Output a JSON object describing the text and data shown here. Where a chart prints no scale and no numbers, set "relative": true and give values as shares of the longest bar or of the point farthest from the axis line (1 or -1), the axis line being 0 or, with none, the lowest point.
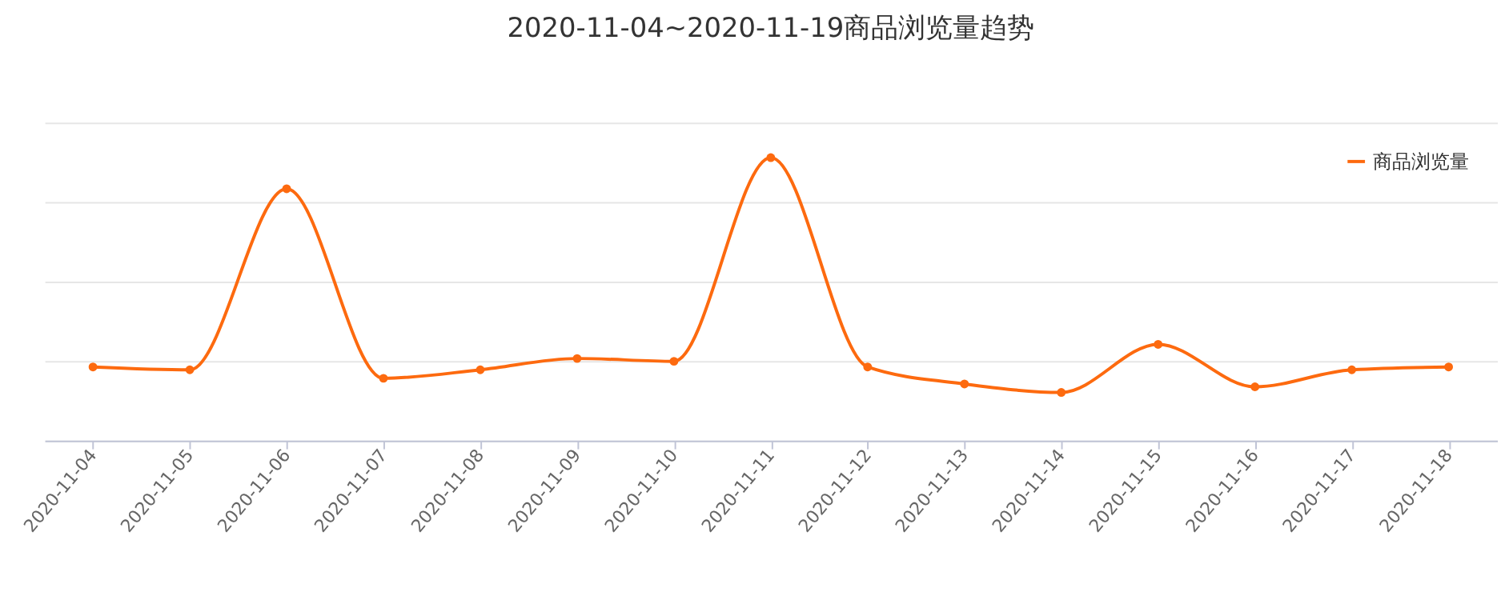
{
  "chart_data": {
    "type": "line",
    "title": "2020-11-04~2020-11-19商品浏览量趋势",
    "relative": true,
    "grid": "y",
    "legend": "top right",
    "marker": "circle",
    "line_style": "solid",
    "categories": [
      "2020-11-04",
      "2020-11-05",
      "2020-11-06",
      "2020-11-07",
      "2020-11-08",
      "2020-11-09",
      "2020-11-10",
      "2020-11-11",
      "2020-11-12",
      "2020-11-13",
      "2020-11-14",
      "2020-11-15",
      "2020-11-16",
      "2020-11-17",
      "2020-11-18"
    ],
    "series": [
      {
        "name": "商品浏览量",
        "color": "#fd6a0f",
        "values": [
          0.26,
          0.25,
          0.89,
          0.22,
          0.25,
          0.29,
          0.28,
          1,
          0.26,
          0.2,
          0.17,
          0.34,
          0.19,
          0.25,
          0.26
        ]
      }
    ]
  }
}
